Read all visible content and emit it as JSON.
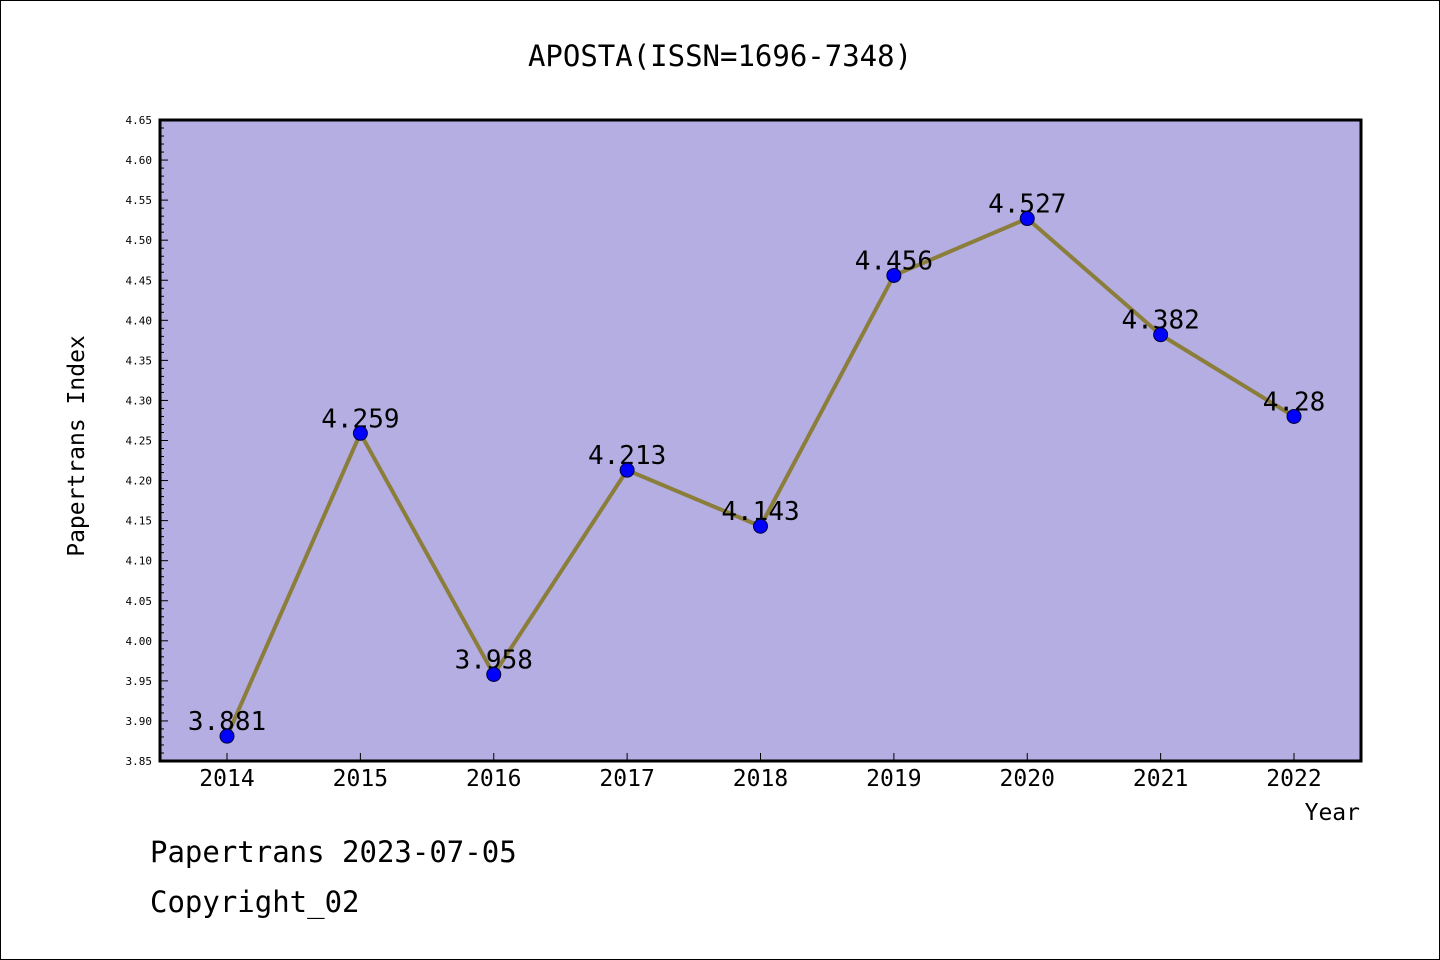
{
  "chart_data": {
    "type": "line",
    "title": "APOSTA(ISSN=1696-7348)",
    "xlabel": "Year",
    "ylabel": "Papertrans Index",
    "x": [
      "2014",
      "2015",
      "2016",
      "2017",
      "2018",
      "2019",
      "2020",
      "2021",
      "2022"
    ],
    "series": [
      {
        "values": [
          3.881,
          4.259,
          3.958,
          4.213,
          4.143,
          4.456,
          4.527,
          4.382,
          4.28
        ],
        "labels": [
          "3.881",
          "4.259",
          "3.958",
          "4.213",
          "4.143",
          "4.456",
          "4.527",
          "4.382",
          "4.28"
        ],
        "line_color": "#8b7d3a",
        "marker_color": "#0000ff"
      }
    ],
    "ylim": [
      3.85,
      4.65
    ],
    "yticks": [
      "3.85",
      "3.90",
      "3.95",
      "4.00",
      "4.05",
      "4.10",
      "4.15",
      "4.20",
      "4.25",
      "4.30",
      "4.35",
      "4.40",
      "4.45",
      "4.50",
      "4.55",
      "4.60",
      "4.65"
    ],
    "plot_background": "#b4aee2",
    "grid": false,
    "legend": "none"
  },
  "footer": {
    "line1": "Papertrans 2023-07-05",
    "line2": "Copyright_02"
  }
}
